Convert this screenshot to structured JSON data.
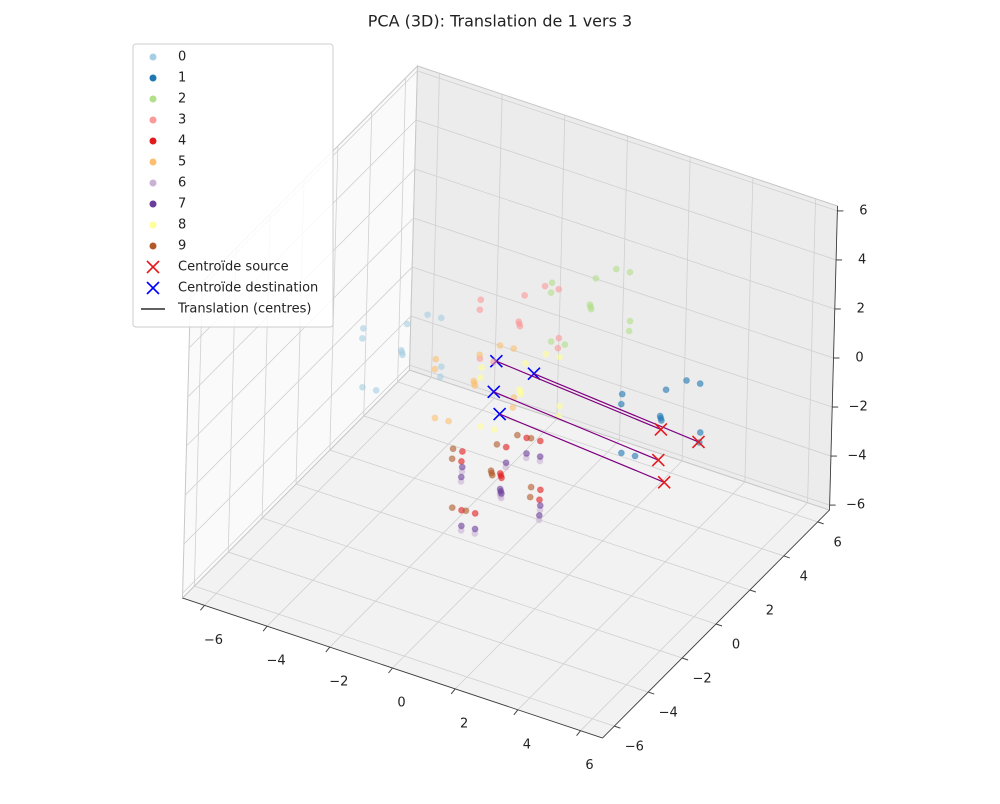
{
  "chart_data": {
    "type": "scatter3d",
    "title": "PCA (3D): Translation de 1 vers 3",
    "xlim": [
      -6.7,
      6.7
    ],
    "ylim": [
      -6.7,
      6.7
    ],
    "zlim": [
      -6.2,
      6.2
    ],
    "xticks": [
      {
        "value": -6,
        "label": "−6"
      },
      {
        "value": -4,
        "label": "−4"
      },
      {
        "value": -2,
        "label": "−2"
      },
      0,
      2,
      4,
      6
    ],
    "yticks": [
      {
        "value": -6,
        "label": "−6"
      },
      {
        "value": -4,
        "label": "−4"
      },
      {
        "value": -2,
        "label": "−2"
      },
      0,
      2,
      4,
      6
    ],
    "zticks": [
      {
        "value": -6,
        "label": "−6"
      },
      {
        "value": -4,
        "label": "−4"
      },
      {
        "value": -2,
        "label": "−2"
      },
      0,
      2,
      4,
      6
    ],
    "grid": true,
    "legend": "upper left",
    "series": [
      {
        "name": "0",
        "color": "#a6cee3",
        "x": [
          -3.2,
          -2.2,
          -4.2,
          -2.7,
          -3.7,
          -1.7,
          -4.7,
          -3.2,
          -3.2,
          -2.4,
          -4.0,
          -2.9
        ],
        "y": [
          -0.5,
          0,
          -1,
          -1.5,
          0.5,
          -1,
          0,
          1,
          -2,
          0.3,
          -1.3,
          -0.8
        ],
        "z": [
          1,
          0.5,
          1.5,
          2,
          0,
          1,
          1,
          1.5,
          0.5,
          2.2,
          -0.2,
          2.5
        ]
      },
      {
        "name": "1",
        "color": "#1f78b4",
        "x": [
          4,
          5,
          3,
          4.5,
          3.5,
          5.5,
          2.5,
          4,
          4,
          4.8,
          3.2,
          4.3
        ],
        "y": [
          1.5,
          2,
          1,
          0.5,
          2.5,
          1,
          2,
          3,
          0,
          2.3,
          0.7,
          1.2
        ],
        "z": [
          0,
          -0.5,
          0.5,
          1,
          -1,
          0,
          0,
          0.5,
          -0.5,
          1.2,
          -1.2,
          1.5
        ]
      },
      {
        "name": "2",
        "color": "#b2df8a",
        "x": [
          0.8,
          1.8,
          -0.2,
          1.3,
          0.3,
          2.3,
          -0.7,
          0.8,
          0.8,
          1.6,
          0,
          1.1
        ],
        "y": [
          3.2,
          3.7,
          2.7,
          2.2,
          4.2,
          2.7,
          3.7,
          4.7,
          1.7,
          4,
          2.4,
          2.9
        ],
        "z": [
          2,
          1.5,
          2.5,
          3,
          1,
          2,
          2,
          2.5,
          1.5,
          3.2,
          0.8,
          3.5
        ]
      },
      {
        "name": "3",
        "color": "#fb9a99",
        "x": [
          -0.5,
          0.5,
          -1.5,
          0,
          -1,
          1,
          -2,
          -0.5,
          -0.5,
          0.3,
          -1.3,
          -0.2
        ],
        "y": [
          1.4,
          1.9,
          0.9,
          0.4,
          2.4,
          0.9,
          1.9,
          2.9,
          -0.1,
          2.2,
          0.6,
          1.1
        ],
        "z": [
          2,
          1.5,
          2.5,
          3,
          1,
          2,
          2,
          2.5,
          1.5,
          3.2,
          0.8,
          3.5
        ]
      },
      {
        "name": "4",
        "color": "#e31a1c",
        "x": [
          0.4,
          1.4,
          -0.6,
          0.9,
          -0.1,
          1.9,
          -1.1,
          0.4,
          0.4,
          1.2,
          -0.4,
          0.7
        ],
        "y": [
          -1.2,
          -0.7,
          -1.7,
          -2.2,
          -0.2,
          -1.7,
          -0.7,
          0.3,
          -2.7,
          -0.4,
          -2,
          -1.5
        ],
        "z": [
          -2,
          -2.5,
          -1.5,
          -1,
          -3,
          -2,
          -2,
          -1.5,
          -2.5,
          -0.8,
          -3.2,
          -0.5
        ]
      },
      {
        "name": "5",
        "color": "#fdbf6f",
        "x": [
          -1.3,
          -0.3,
          -2.3,
          -0.8,
          -1.8,
          0.2,
          -2.8,
          -1.3,
          -1.3,
          -0.5,
          -2.1,
          -1
        ],
        "y": [
          0.3,
          0.8,
          -0.2,
          -0.7,
          1.3,
          -0.2,
          0.8,
          1.8,
          -1.2,
          1.1,
          -0.5,
          0
        ],
        "z": [
          0,
          -0.5,
          0.5,
          1,
          -1,
          0,
          0,
          0.5,
          -0.5,
          1.2,
          -1.2,
          1.5
        ]
      },
      {
        "name": "6",
        "color": "#cab2d6",
        "x": [
          0.3,
          1.3,
          -0.7,
          0.8,
          -0.2,
          1.8,
          -1.2,
          0.3,
          0.3,
          1.1,
          -0.5,
          0.6
        ],
        "y": [
          -1,
          -0.5,
          -1.5,
          -2,
          0,
          -1.5,
          -0.5,
          0.5,
          -2.5,
          -0.2,
          -1.8,
          -1.3
        ],
        "z": [
          -3,
          -3.5,
          -2.5,
          -2,
          -4,
          -3,
          -3,
          -2.5,
          -3.5,
          -1.8,
          -4.2,
          -1.5
        ]
      },
      {
        "name": "7",
        "color": "#6a3d9a",
        "x": [
          0.2,
          1.2,
          -0.8,
          0.7,
          -0.3,
          1.7,
          -1.3,
          0.2,
          0.2,
          1,
          -0.6,
          0.5
        ],
        "y": [
          -0.8,
          -0.3,
          -1.3,
          -1.8,
          0.2,
          -1.3,
          -0.3,
          0.7,
          -2.3,
          0,
          -1.6,
          -1.1
        ],
        "z": [
          -3,
          -3.5,
          -2.5,
          -2,
          -4,
          -3,
          -3,
          -2.5,
          -3.5,
          -1.8,
          -4.2,
          -1.5
        ]
      },
      {
        "name": "8",
        "color": "#ffff99",
        "x": [
          0,
          1,
          -1,
          0.5,
          -0.5,
          1.5,
          -1.5,
          0,
          0,
          0.8,
          -0.8,
          0.3
        ],
        "y": [
          0.6,
          1.1,
          0.1,
          -0.4,
          1.6,
          0.1,
          1.1,
          2.1,
          -0.9,
          1.4,
          -0.2,
          0.3
        ],
        "z": [
          0,
          -0.5,
          0.5,
          1,
          -1,
          0,
          0,
          0.5,
          -0.5,
          1.2,
          -1.2,
          1.5
        ]
      },
      {
        "name": "9",
        "color": "#b15928",
        "x": [
          0,
          1,
          -1,
          0.5,
          -0.5,
          1.5,
          -1.5,
          0,
          0,
          0.8,
          -0.8,
          0.3
        ],
        "y": [
          -1,
          -0.5,
          -1.5,
          -2,
          0,
          -1.5,
          -0.5,
          0.5,
          -2.5,
          -0.2,
          -1.8,
          -1.3
        ],
        "z": [
          -2.2,
          -2.7,
          -1.7,
          -1.2,
          -3.2,
          -2.2,
          -2.2,
          -1.7,
          -2.7,
          -1,
          -3.4,
          -0.7
        ]
      }
    ],
    "source_centroids": {
      "name": "Centroïde source",
      "color": "#e41a1c",
      "x": [
        3.7,
        4.9,
        3.8,
        3.9
      ],
      "y": [
        2.1,
        2.1,
        1.8,
        2
      ],
      "z": [
        -1,
        -1,
        -2,
        -3
      ]
    },
    "destination_centroids": {
      "name": "Centroïde destination",
      "color": "#0000ff",
      "x": [
        -1.3,
        -0.1,
        -1.2,
        -1.1
      ],
      "y": [
        1.6,
        1.6,
        1.3,
        1.5
      ],
      "z": [
        0,
        0,
        -1,
        -2
      ]
    },
    "translation": {
      "name": "Translation (centres)",
      "color": "#000000",
      "line_color": "#800080"
    }
  }
}
